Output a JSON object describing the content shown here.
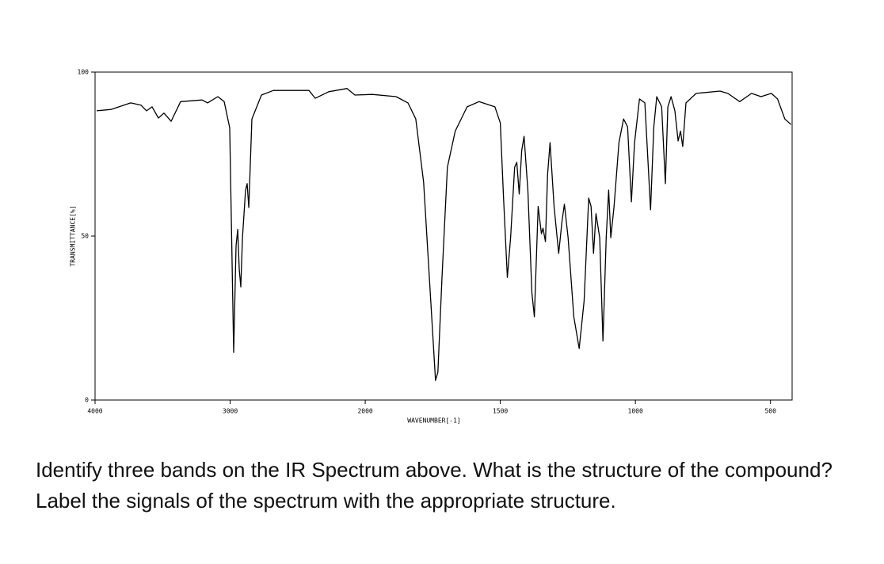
{
  "chart_data": {
    "type": "line",
    "xlabel": "WAVENUMBER[-1]",
    "ylabel": "TRANSMITTANCE[%]",
    "x_scale_change_at": 2000,
    "xlim": [
      4000,
      420
    ],
    "xticks": [
      4000,
      3000,
      2000,
      1500,
      1000,
      500
    ],
    "ylim": [
      0,
      100
    ],
    "yticks": [
      0,
      50,
      100
    ],
    "grid": false,
    "series": [
      {
        "name": "spectrum",
        "color": "#000000",
        "x": [
          3988,
          3883,
          3736,
          3660,
          3619,
          3578,
          3531,
          3490,
          3437,
          3367,
          3208,
          3167,
          3091,
          3044,
          3003,
          2974,
          2956,
          2944,
          2933,
          2921,
          2909,
          2886,
          2874,
          2862,
          2839,
          2768,
          2680,
          2416,
          2370,
          2270,
          2135,
          2076,
          1974,
          1886,
          1842,
          1813,
          1784,
          1754,
          1740,
          1731,
          1716,
          1696,
          1667,
          1623,
          1579,
          1520,
          1500,
          1488,
          1474,
          1462,
          1447,
          1439,
          1430,
          1421,
          1412,
          1398,
          1383,
          1374,
          1360,
          1348,
          1342,
          1333,
          1325,
          1316,
          1301,
          1284,
          1272,
          1263,
          1249,
          1228,
          1208,
          1190,
          1173,
          1164,
          1155,
          1146,
          1132,
          1120,
          1108,
          1099,
          1091,
          1079,
          1061,
          1044,
          1029,
          1015,
          1003,
          985,
          965,
          944,
          932,
          921,
          903,
          889,
          880,
          868,
          854,
          842,
          833,
          825,
          813,
          775,
          687,
          658,
          614,
          570,
          535,
          497,
          474,
          447,
          424
        ],
        "values": [
          88.2,
          88.6,
          90.6,
          89.9,
          88.2,
          89.4,
          86,
          87.5,
          85,
          91,
          91.5,
          90.6,
          92.5,
          91,
          83,
          14.5,
          47,
          52,
          40,
          34.5,
          49.5,
          64,
          66,
          58.7,
          85.7,
          93,
          94.4,
          94.4,
          92,
          94,
          95,
          93,
          93.2,
          92.5,
          90.6,
          85.7,
          66.4,
          25.4,
          6,
          8.5,
          37.4,
          71,
          82,
          89.4,
          91,
          89.4,
          84.5,
          61.6,
          37.4,
          49.5,
          71,
          72.5,
          62.8,
          76,
          80.4,
          64,
          32.6,
          25.4,
          59,
          50.7,
          52.4,
          48.3,
          68.8,
          78.5,
          59,
          44.7,
          54.3,
          59.7,
          49.5,
          25.4,
          15.7,
          30.2,
          61.6,
          59,
          44.7,
          56.8,
          49.5,
          18,
          49.5,
          64,
          49.5,
          59,
          78.5,
          85.7,
          83.3,
          60.4,
          78.5,
          91.8,
          90.6,
          58,
          83.3,
          92.5,
          89.4,
          66,
          89.4,
          92.5,
          88.2,
          79,
          82,
          77.3,
          90.6,
          93.5,
          94.2,
          93.5,
          91,
          93.5,
          92.5,
          93.5,
          91.8,
          85.7,
          84
        ]
      }
    ]
  },
  "question": "Identify three bands on the IR Spectrum above. What is the structure of the compound? Label the signals of the spectrum with the appropriate structure."
}
